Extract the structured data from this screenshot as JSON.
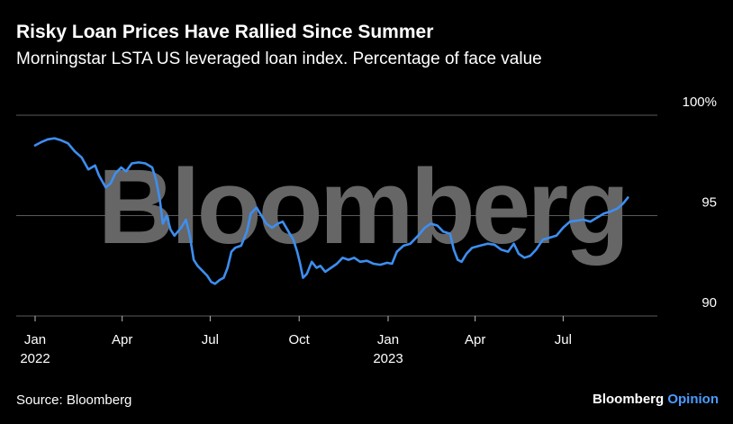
{
  "header": {
    "title": "Risky Loan Prices Have Rallied Since Summer",
    "subtitle": "Morningstar LSTA US leveraged loan index. Percentage of face value"
  },
  "footer": {
    "source": "Source: Bloomberg",
    "brand_main": "Bloomberg",
    "brand_suffix": "Opinion"
  },
  "watermark": "Bloomberg",
  "colors": {
    "background": "#000000",
    "line": "#3d8ef0",
    "grid": "#5a5a5a",
    "watermark": "#666666",
    "text": "#ffffff",
    "brand_accent": "#4a9cff"
  },
  "chart_data": {
    "type": "line",
    "title": "Risky Loan Prices Have Rallied Since Summer",
    "ylim": [
      90,
      100
    ],
    "y_ticks": [
      {
        "value": 100,
        "label": "100%"
      },
      {
        "value": 95,
        "label": "95"
      },
      {
        "value": 90,
        "label": "90"
      }
    ],
    "x_ticks": [
      {
        "date": "2022-01-01",
        "label": "Jan",
        "sublabel": "2022"
      },
      {
        "date": "2022-04-01",
        "label": "Apr",
        "sublabel": ""
      },
      {
        "date": "2022-07-01",
        "label": "Jul",
        "sublabel": ""
      },
      {
        "date": "2022-10-01",
        "label": "Oct",
        "sublabel": ""
      },
      {
        "date": "2023-01-01",
        "label": "Jan",
        "sublabel": "2023"
      },
      {
        "date": "2023-04-01",
        "label": "Apr",
        "sublabel": ""
      },
      {
        "date": "2023-07-01",
        "label": "Jul",
        "sublabel": ""
      }
    ],
    "xlim": [
      "2022-01-01",
      "2023-09-15"
    ],
    "y_axis_position": "right",
    "grid": true,
    "series": [
      {
        "points": [
          [
            "2022-01-01",
            98.5
          ],
          [
            "2022-01-07",
            98.65
          ],
          [
            "2022-01-14",
            98.8
          ],
          [
            "2022-01-21",
            98.85
          ],
          [
            "2022-01-28",
            98.75
          ],
          [
            "2022-02-04",
            98.6
          ],
          [
            "2022-02-11",
            98.2
          ],
          [
            "2022-02-18",
            97.9
          ],
          [
            "2022-02-25",
            97.3
          ],
          [
            "2022-03-04",
            97.5
          ],
          [
            "2022-03-08",
            97.0
          ],
          [
            "2022-03-15",
            96.4
          ],
          [
            "2022-03-20",
            96.6
          ],
          [
            "2022-03-25",
            97.1
          ],
          [
            "2022-03-31",
            97.4
          ],
          [
            "2022-04-05",
            97.2
          ],
          [
            "2022-04-11",
            97.6
          ],
          [
            "2022-04-18",
            97.65
          ],
          [
            "2022-04-25",
            97.6
          ],
          [
            "2022-05-02",
            97.4
          ],
          [
            "2022-05-06",
            96.8
          ],
          [
            "2022-05-10",
            95.8
          ],
          [
            "2022-05-13",
            94.6
          ],
          [
            "2022-05-17",
            95.0
          ],
          [
            "2022-05-21",
            94.3
          ],
          [
            "2022-05-25",
            94.0
          ],
          [
            "2022-06-01",
            94.4
          ],
          [
            "2022-06-06",
            94.8
          ],
          [
            "2022-06-10",
            94.0
          ],
          [
            "2022-06-14",
            92.8
          ],
          [
            "2022-06-18",
            92.5
          ],
          [
            "2022-06-22",
            92.3
          ],
          [
            "2022-06-28",
            92.0
          ],
          [
            "2022-07-02",
            91.7
          ],
          [
            "2022-07-06",
            91.6
          ],
          [
            "2022-07-11",
            91.8
          ],
          [
            "2022-07-15",
            91.9
          ],
          [
            "2022-07-19",
            92.4
          ],
          [
            "2022-07-23",
            93.2
          ],
          [
            "2022-07-27",
            93.4
          ],
          [
            "2022-08-02",
            93.5
          ],
          [
            "2022-08-08",
            94.2
          ],
          [
            "2022-08-12",
            95.1
          ],
          [
            "2022-08-18",
            95.4
          ],
          [
            "2022-08-23",
            95.0
          ],
          [
            "2022-08-28",
            94.6
          ],
          [
            "2022-09-03",
            94.4
          ],
          [
            "2022-09-09",
            94.6
          ],
          [
            "2022-09-14",
            94.7
          ],
          [
            "2022-09-20",
            94.2
          ],
          [
            "2022-09-25",
            93.8
          ],
          [
            "2022-09-29",
            93.2
          ],
          [
            "2022-10-02",
            92.6
          ],
          [
            "2022-10-05",
            91.9
          ],
          [
            "2022-10-09",
            92.1
          ],
          [
            "2022-10-14",
            92.7
          ],
          [
            "2022-10-19",
            92.4
          ],
          [
            "2022-10-23",
            92.5
          ],
          [
            "2022-10-28",
            92.2
          ],
          [
            "2022-11-03",
            92.4
          ],
          [
            "2022-11-09",
            92.6
          ],
          [
            "2022-11-15",
            92.9
          ],
          [
            "2022-11-21",
            92.8
          ],
          [
            "2022-11-27",
            92.9
          ],
          [
            "2022-12-03",
            92.7
          ],
          [
            "2022-12-10",
            92.75
          ],
          [
            "2022-12-17",
            92.6
          ],
          [
            "2022-12-24",
            92.55
          ],
          [
            "2022-12-31",
            92.65
          ],
          [
            "2023-01-05",
            92.6
          ],
          [
            "2023-01-10",
            93.2
          ],
          [
            "2023-01-17",
            93.5
          ],
          [
            "2023-01-24",
            93.6
          ],
          [
            "2023-02-01",
            94.0
          ],
          [
            "2023-02-08",
            94.4
          ],
          [
            "2023-02-14",
            94.6
          ],
          [
            "2023-02-21",
            94.5
          ],
          [
            "2023-02-27",
            94.2
          ],
          [
            "2023-03-06",
            94.1
          ],
          [
            "2023-03-10",
            93.3
          ],
          [
            "2023-03-14",
            92.8
          ],
          [
            "2023-03-18",
            92.7
          ],
          [
            "2023-03-23",
            93.1
          ],
          [
            "2023-03-29",
            93.4
          ],
          [
            "2023-04-06",
            93.5
          ],
          [
            "2023-04-14",
            93.6
          ],
          [
            "2023-04-21",
            93.55
          ],
          [
            "2023-04-28",
            93.3
          ],
          [
            "2023-05-05",
            93.2
          ],
          [
            "2023-05-11",
            93.6
          ],
          [
            "2023-05-16",
            93.1
          ],
          [
            "2023-05-22",
            92.9
          ],
          [
            "2023-05-28",
            93.0
          ],
          [
            "2023-06-03",
            93.3
          ],
          [
            "2023-06-10",
            93.8
          ],
          [
            "2023-06-17",
            93.9
          ],
          [
            "2023-06-24",
            94.0
          ],
          [
            "2023-07-01",
            94.4
          ],
          [
            "2023-07-08",
            94.7
          ],
          [
            "2023-07-15",
            94.75
          ],
          [
            "2023-07-22",
            94.8
          ],
          [
            "2023-07-29",
            94.7
          ],
          [
            "2023-08-05",
            94.9
          ],
          [
            "2023-08-12",
            95.1
          ],
          [
            "2023-08-19",
            95.2
          ],
          [
            "2023-08-26",
            95.35
          ],
          [
            "2023-09-01",
            95.6
          ],
          [
            "2023-09-06",
            95.9
          ]
        ]
      }
    ]
  }
}
